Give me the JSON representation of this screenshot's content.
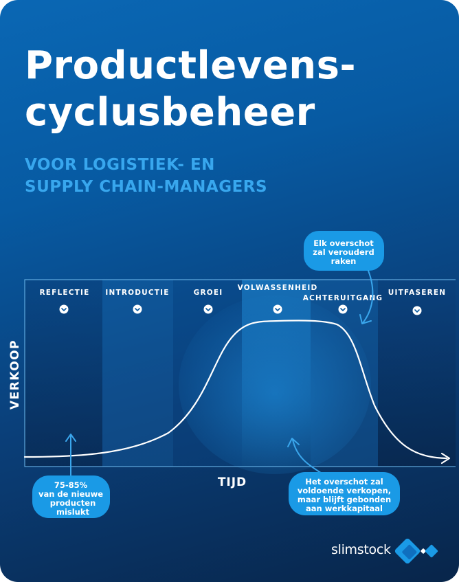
{
  "title": {
    "line1": "Productlevens-",
    "line2": "cyclusbeheer"
  },
  "subtitle": {
    "line1": "VOOR LOGISTIEK- EN",
    "line2": "SUPPLY CHAIN-MANAGERS"
  },
  "axes": {
    "y_label": "VERKOOP",
    "x_label": "TIJD"
  },
  "phases": [
    {
      "label": "REFLECTIE",
      "icon": "chevron-down-icon"
    },
    {
      "label": "INTRODUCTIE",
      "icon": "chevron-down-icon"
    },
    {
      "label": "GROEI",
      "icon": "chevron-down-icon"
    },
    {
      "label": "VOLWASSENHEID",
      "icon": "chevron-down-icon"
    },
    {
      "label": "ACHTERUITGANG",
      "icon": "chevron-down-icon"
    },
    {
      "label": "UITFASEREN",
      "icon": "chevron-down-icon"
    }
  ],
  "callouts": {
    "obsolete": {
      "line1": "Elk overschot",
      "line2": "zal verouderd",
      "line3": "raken"
    },
    "failure": {
      "line1": "75-85%",
      "line2": "van de nieuwe",
      "line3": "producten",
      "line4": "mislukt"
    },
    "surplus": {
      "line1": "Het overschot zal",
      "line2": "voldoende verkopen,",
      "line3": "maar blijft gebonden",
      "line4": "aan werkkapitaal"
    }
  },
  "logo": {
    "text": "slimstock"
  },
  "colors": {
    "accent": "#1a9ae6",
    "background_top": "#0a67b4",
    "background_bottom": "#08254a"
  }
}
